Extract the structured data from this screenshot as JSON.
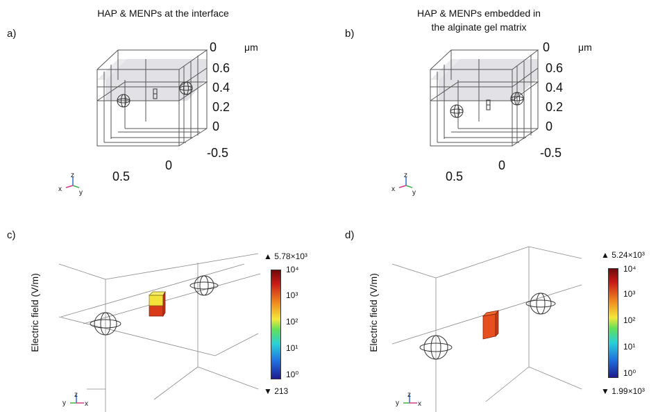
{
  "panels": {
    "a": {
      "letter": "a)",
      "title": "HAP & MENPs at the interface",
      "ticks": {
        "z0": "0",
        "z06": "0.6",
        "z04": "0.4",
        "z02": "0.2",
        "zz0": "0",
        "y_neg05": "-0.5",
        "x05": "0.5",
        "x0": "0"
      },
      "unit": "μm",
      "triad": {
        "z": "z",
        "x": "x",
        "y": "y"
      }
    },
    "b": {
      "letter": "b)",
      "title_line1": "HAP & MENPs embedded in",
      "title_line2": "the alginate gel matrix",
      "ticks": {
        "z0": "0",
        "z06": "0.6",
        "z04": "0.4",
        "z02": "0.2",
        "zz0": "0",
        "y_neg05": "-0.5",
        "x05": "0.5",
        "x0": "0"
      },
      "unit": "μm",
      "triad": {
        "z": "z",
        "x": "x",
        "y": "y"
      }
    },
    "c": {
      "letter": "c)",
      "ylabel": "Electric field (V/m)",
      "colorbar": {
        "max_label": "▲ 5.78×10³",
        "min_label": "▼ 213",
        "ticks": [
          "10⁴",
          "10³",
          "10²",
          "10¹",
          "10⁰"
        ]
      },
      "triad": {
        "z": "z",
        "x": "x",
        "y": "y"
      }
    },
    "d": {
      "letter": "d)",
      "ylabel": "Electric field (V/m)",
      "colorbar": {
        "max_label": "▲ 5.24×10³",
        "min_label": "▼ 1.99×10³",
        "ticks": [
          "10⁴",
          "10³",
          "10²",
          "10¹",
          "10⁰"
        ]
      },
      "triad": {
        "z": "z",
        "x": "x",
        "y": "y"
      }
    }
  },
  "colors": {
    "accent_red": "#d83a1a",
    "accent_yellow": "#f2e23a",
    "colormap": [
      "#1e1b8e",
      "#1f6fe0",
      "#2ad1d7",
      "#5fe05a",
      "#f4e83a",
      "#f08a1f",
      "#c81818",
      "#6e0a0a"
    ]
  }
}
